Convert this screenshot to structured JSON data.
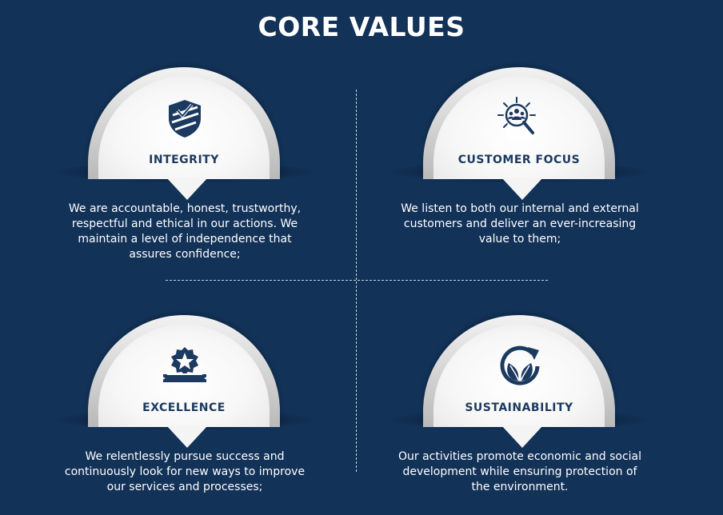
{
  "title": "CORE VALUES",
  "colors": {
    "background": "#123258",
    "label": "#1c3a60",
    "dome": "#e8e8e8"
  },
  "values": [
    {
      "label": "INTEGRITY",
      "icon": "shield-check-icon",
      "description": "We are accountable, honest, trustworthy, respectful and ethical in our actions. We maintain a level of independence that assures confidence;"
    },
    {
      "label": "CUSTOMER FOCUS",
      "icon": "magnifier-people-icon",
      "description": "We listen to both our internal and external customers and deliver an ever-increasing value to them;"
    },
    {
      "label": "EXCELLENCE",
      "icon": "star-badge-icon",
      "description": "We relentlessly pursue success and continuously look for new ways to improve our services and processes;"
    },
    {
      "label": "SUSTAINABILITY",
      "icon": "leaf-cycle-icon",
      "description": "Our activities  promote economic and social development while ensuring protection of the environment."
    }
  ]
}
